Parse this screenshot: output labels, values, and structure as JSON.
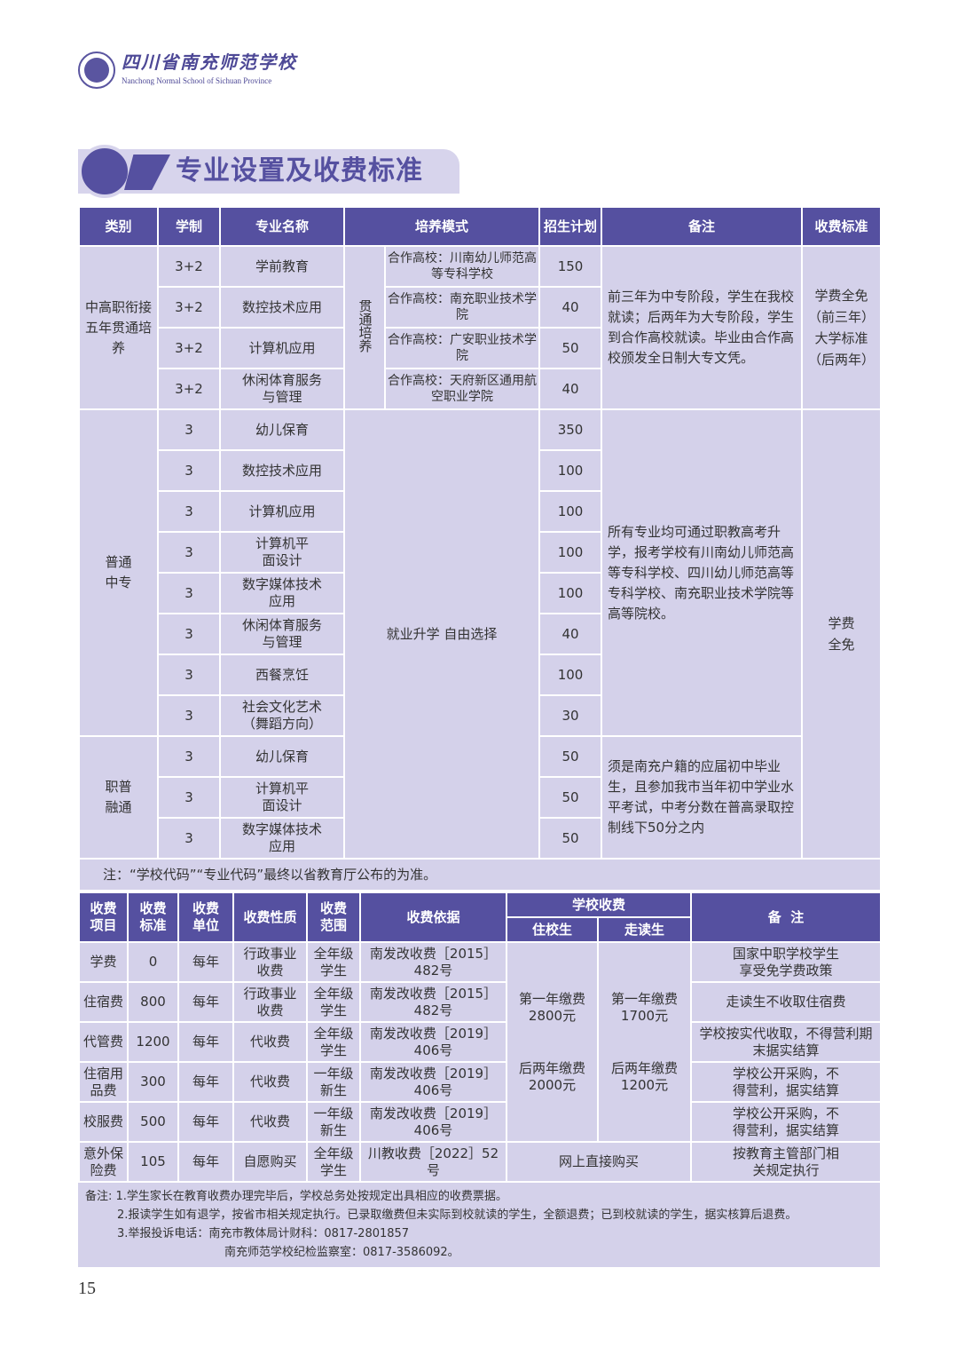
{
  "header": {
    "school_cn": "四川省南充师范学校",
    "school_en": "Nanchong Normal School of Sichuan Province"
  },
  "banner_title": "专业设置及收费标准",
  "table1": {
    "headers": [
      "类别",
      "学制",
      "专业名称",
      "培养模式",
      "招生计划",
      "备注",
      "收费标准"
    ],
    "group1": {
      "category": "中高职衔接五年贯通培养",
      "mode": "贯通培养",
      "remark": "前三年为中专阶段，学生在我校就读；后两年为大专阶段，学生到合作高校就读。毕业由合作高校颁发全日制大专文凭。",
      "fee": "学费全免（前三年）大学标准（后两年）",
      "rows": [
        {
          "system": "3+2",
          "major": "学前教育",
          "partner": "合作高校：川南幼儿师范高等专科学校",
          "plan": "150"
        },
        {
          "system": "3+2",
          "major": "数控技术应用",
          "partner": "合作高校：南充职业技术学院",
          "plan": "40"
        },
        {
          "system": "3+2",
          "major": "计算机应用",
          "partner": "合作高校：广安职业技术学院",
          "plan": "50"
        },
        {
          "system": "3+2",
          "major": "休闲体育服务与管理",
          "partner": "合作高校：天府新区通用航空职业学院",
          "plan": "40"
        }
      ]
    },
    "group2": {
      "category": "普通中专",
      "mode": "就业升学 自由选择",
      "remark": "所有专业均可通过职教高考升学，报考学校有川南幼儿师范高等专科学校、四川幼儿师范高等专科学校、南充职业技术学院等高等院校。",
      "fee": "学费全免",
      "rows": [
        {
          "system": "3",
          "major": "幼儿保育",
          "plan": "350"
        },
        {
          "system": "3",
          "major": "数控技术应用",
          "plan": "100"
        },
        {
          "system": "3",
          "major": "计算机应用",
          "plan": "100"
        },
        {
          "system": "3",
          "major": "计算机平面设计",
          "plan": "100"
        },
        {
          "system": "3",
          "major": "数字媒体技术应用",
          "plan": "100"
        },
        {
          "system": "3",
          "major": "休闲体育服务与管理",
          "plan": "40"
        },
        {
          "system": "3",
          "major": "西餐烹饪",
          "plan": "100"
        },
        {
          "system": "3",
          "major": "社会文化艺术（舞蹈方向）",
          "plan": "30"
        }
      ]
    },
    "group3": {
      "category": "职普融通",
      "remark": "须是南充户籍的应届初中毕业生，且参加我市当年初中学业水平考试，中考分数在普高录取控制线下50分之内",
      "rows": [
        {
          "system": "3",
          "major": "幼儿保育",
          "plan": "50"
        },
        {
          "system": "3",
          "major": "计算机平面设计",
          "plan": "50"
        },
        {
          "system": "3",
          "major": "数字媒体技术应用",
          "plan": "50"
        }
      ]
    },
    "note": "注：“学校代码”“专业代码”最终以省教育厅公布的为准。"
  },
  "table2": {
    "headers": {
      "item": "收费项目",
      "standard": "收费标准",
      "unit": "收费单位",
      "nature": "收费性质",
      "scope": "收费范围",
      "basis": "收费依据",
      "school_fee": "学校收费",
      "boarding": "住校生",
      "day": "走读生",
      "remark": "备  注"
    },
    "rows": [
      {
        "item": "学费",
        "standard": "0",
        "unit": "每年",
        "nature": "行政事业收费",
        "scope": "全年级学生",
        "basis": "南发改收费［2015］482号",
        "remark": "国家中职学校学生享受免学费政策"
      },
      {
        "item": "住宿费",
        "standard": "800",
        "unit": "每年",
        "nature": "行政事业收费",
        "scope": "全年级学生",
        "basis": "南发改收费［2015］482号",
        "remark": "走读生不收取住宿费"
      },
      {
        "item": "代管费",
        "standard": "1200",
        "unit": "每年",
        "nature": "代收费",
        "scope": "全年级学生",
        "basis": "南发改收费［2019］406号",
        "remark": "学校按实代收取，不得营利期末据实结算"
      },
      {
        "item": "住宿用品费",
        "standard": "300",
        "unit": "每年",
        "nature": "代收费",
        "scope": "一年级新生",
        "basis": "南发改收费［2019］406号",
        "remark": "学校公开采购，不得营利，据实结算"
      },
      {
        "item": "校服费",
        "standard": "500",
        "unit": "每年",
        "nature": "代收费",
        "scope": "一年级新生",
        "basis": "南发改收费［2019］406号",
        "remark": "学校公开采购，不得营利，据实结算"
      },
      {
        "item": "意外保险费",
        "standard": "105",
        "unit": "每年",
        "nature": "自愿购买",
        "scope": "全年级学生",
        "basis": "川教收费［2022］52号",
        "remark": "按教育主管部门相关规定执行"
      }
    ],
    "boarding_first": "第一年缴费 2800元",
    "boarding_later": "后两年缴费 2000元",
    "day_first": "第一年缴费 1700元",
    "day_later": "后两年缴费 1200元",
    "insurance_fee": "网上直接购买"
  },
  "notes": [
    "备注: 1.学生家长在教育收费办理完毕后，学校总务处按规定出具相应的收费票据。",
    "2.报读学生如有退学，按省市相关规定执行。已录取缴费但未实际到校就读的学生，全额退费；已到校就读的学生，据实核算后退费。",
    "3.举报投诉电话：南充市教体局计财科：0817-2801857",
    "南充师范学校纪检监察室：0817-3586092。"
  ],
  "page_number": "15",
  "colors": {
    "header_purple": "#5550a0",
    "cell_lavender": "#d4d1ea"
  }
}
